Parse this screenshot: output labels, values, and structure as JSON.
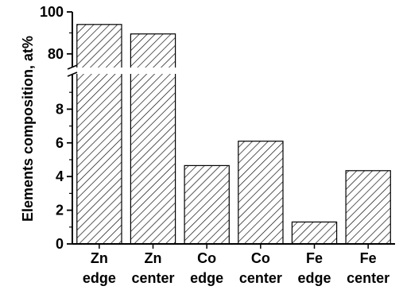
{
  "chart_data": {
    "type": "bar",
    "categories": [
      [
        "Zn",
        "edge"
      ],
      [
        "Zn",
        "center"
      ],
      [
        "Co",
        "edge"
      ],
      [
        "Co",
        "center"
      ],
      [
        "Fe",
        "edge"
      ],
      [
        "Fe",
        "center"
      ]
    ],
    "values": [
      94,
      89.5,
      4.65,
      6.1,
      1.3,
      4.35
    ],
    "ylabel": "Elements composition, at%",
    "axis_break": {
      "lower": [
        0,
        10
      ],
      "upper": [
        75,
        100
      ]
    },
    "lower_ticks": [
      "0",
      "2",
      "4",
      "6",
      "8"
    ],
    "upper_ticks": [
      "80",
      "100"
    ],
    "bar_fill": "hatched",
    "grid": false,
    "colors": {
      "bar_stroke": "#000000",
      "hatch": "#000000",
      "background": "#ffffff"
    }
  }
}
